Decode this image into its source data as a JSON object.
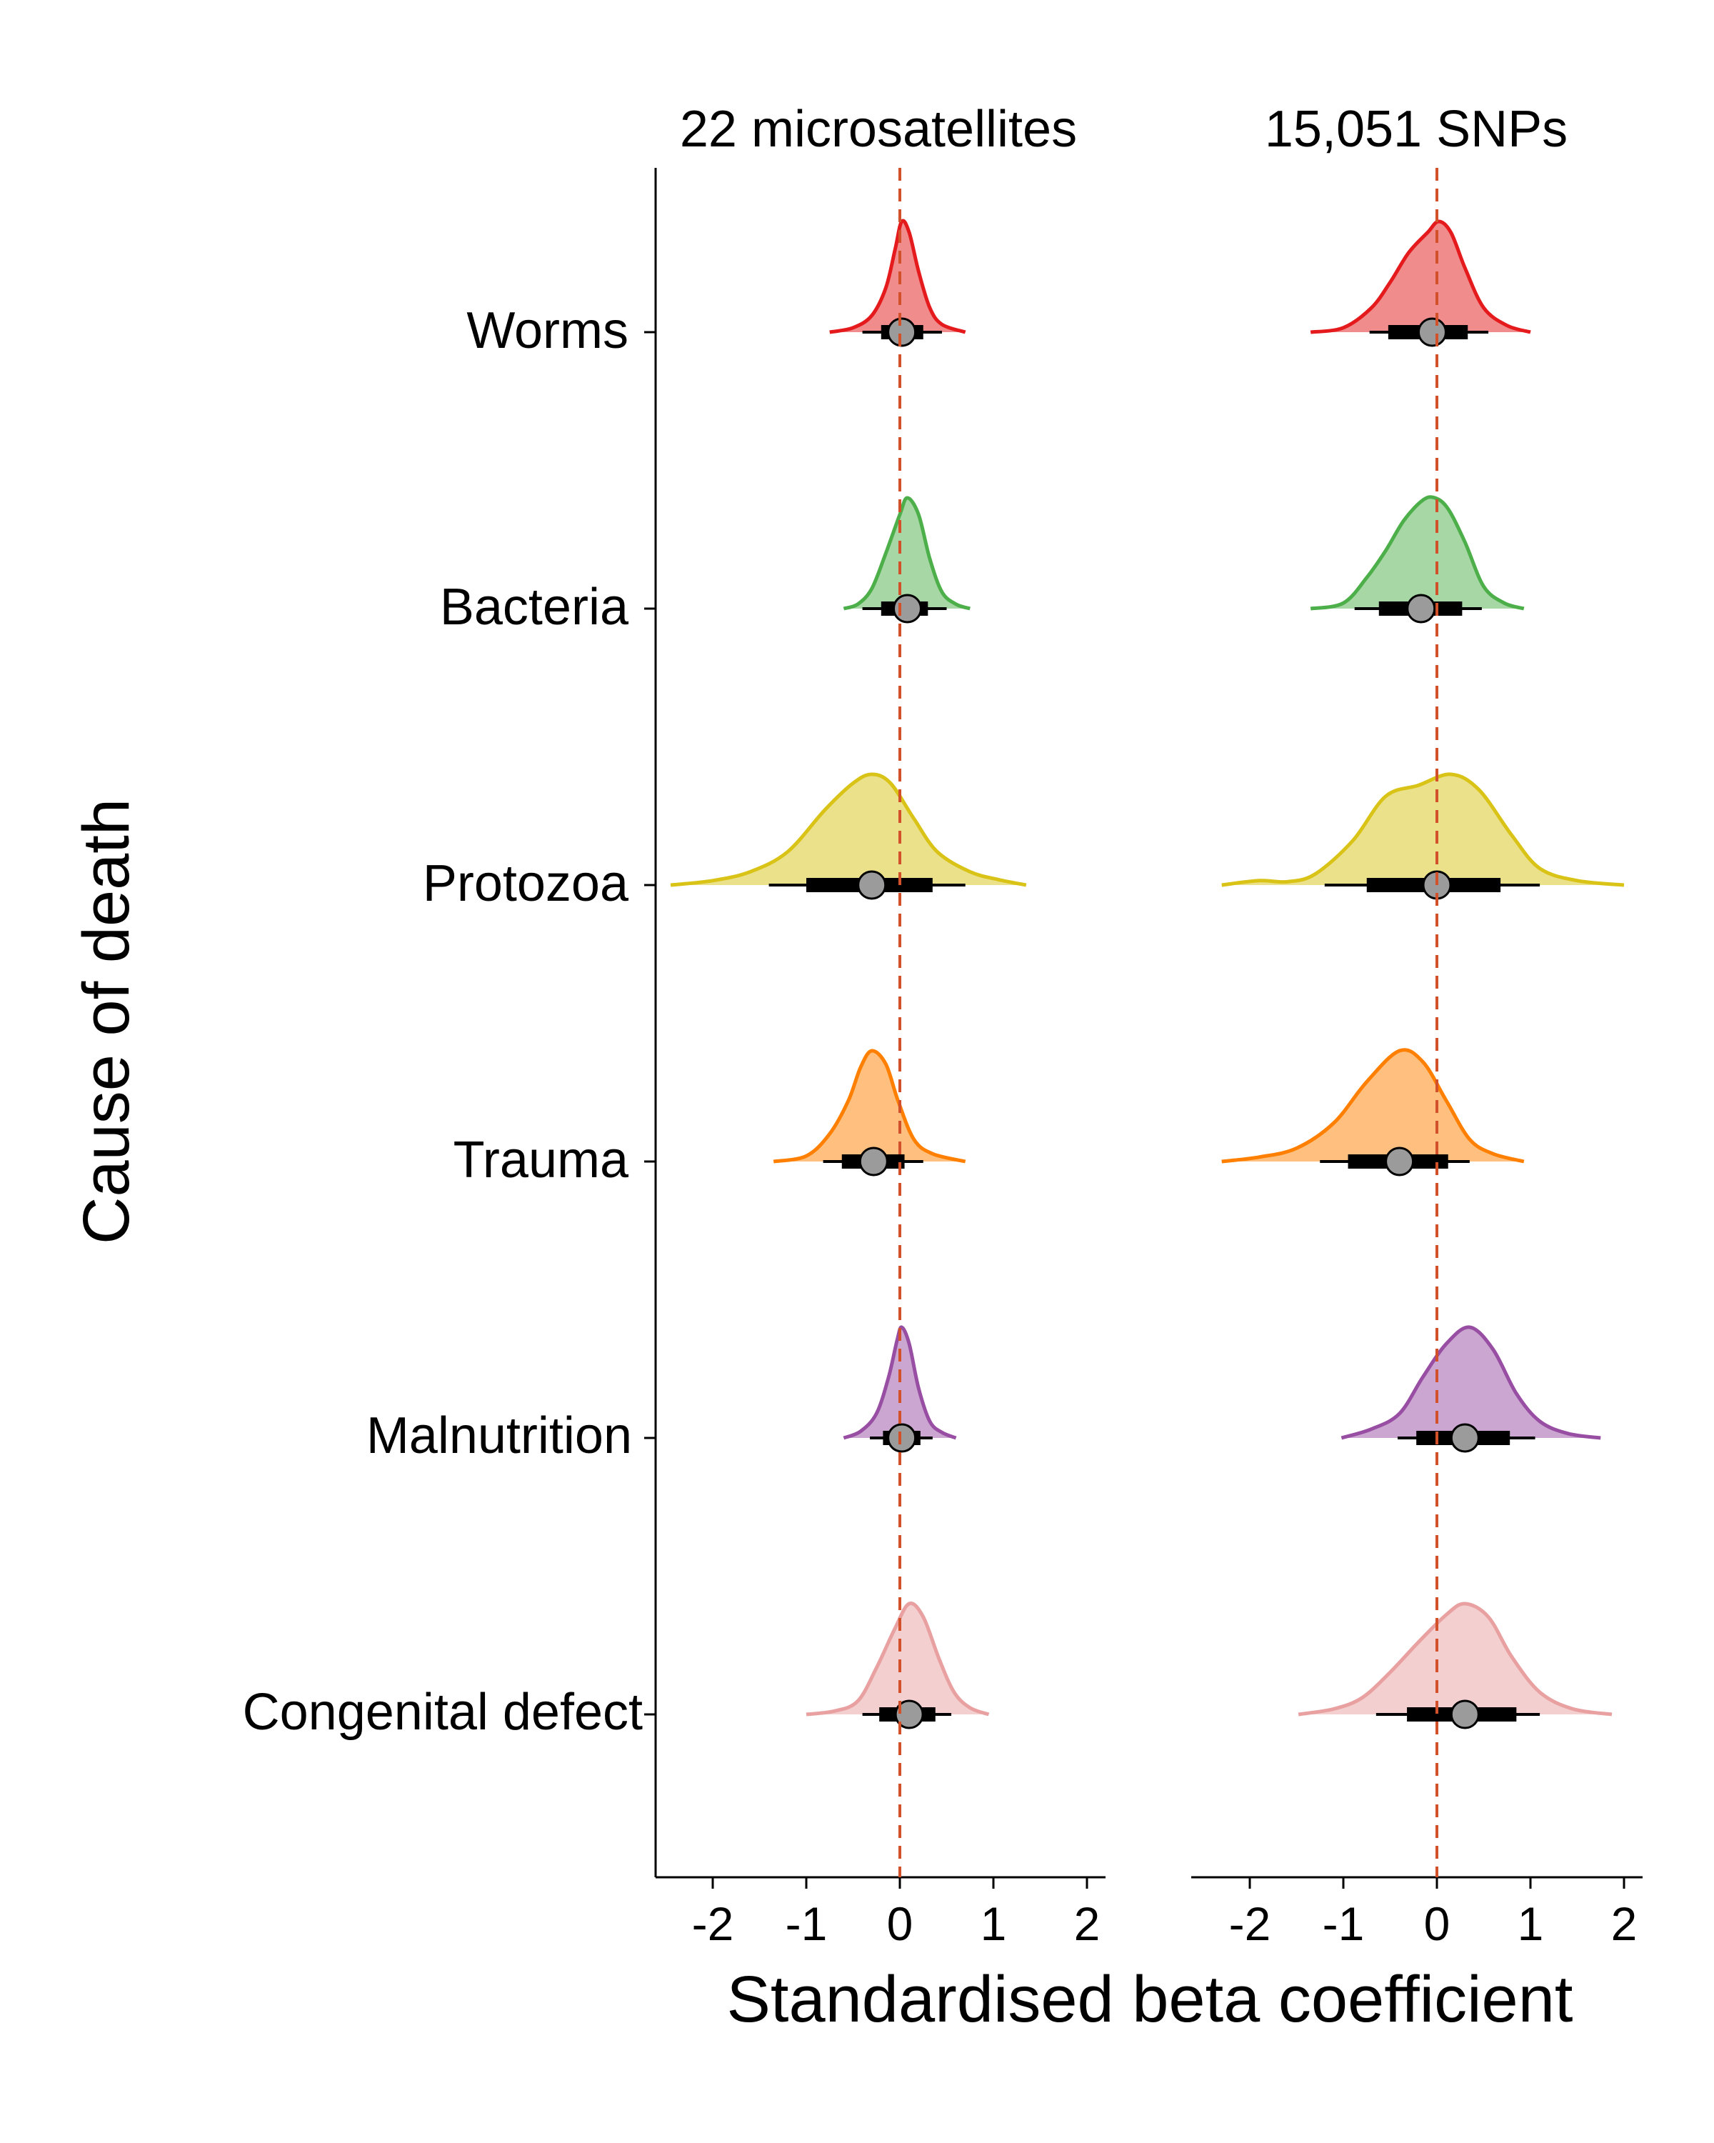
{
  "chart_data": {
    "type": "violin",
    "xlabel": "Standardised beta coefficient",
    "ylabel": "Cause of death",
    "xlim": [
      -2.6,
      2.2
    ],
    "xticks": [
      -2,
      -1,
      0,
      1,
      2
    ],
    "xtick_labels": [
      "-2",
      "-1",
      "0",
      "1",
      "2"
    ],
    "reference_line": 0,
    "categories": [
      "Worms",
      "Bacteria",
      "Protozoa",
      "Trauma",
      "Malnutrition",
      "Congenital defect"
    ],
    "colors": {
      "Worms": "#e41a1c",
      "Bacteria": "#4daf4a",
      "Protozoa": "#d9c317",
      "Trauma": "#ff7f00",
      "Malnutrition": "#984ea3",
      "Congenital defect": "#e8a0a0"
    },
    "panels": [
      {
        "title": "22 microsatellites",
        "series": [
          {
            "name": "Worms",
            "median": 0.02,
            "inner": [
              -0.2,
              0.25
            ],
            "outer": [
              -0.4,
              0.45
            ],
            "range": [
              -0.75,
              0.7
            ],
            "density": [
              [
                -0.75,
                0
              ],
              [
                -0.5,
                0.04
              ],
              [
                -0.3,
                0.15
              ],
              [
                -0.15,
                0.4
              ],
              [
                -0.05,
                0.75
              ],
              [
                0.02,
                1.0
              ],
              [
                0.1,
                0.9
              ],
              [
                0.2,
                0.55
              ],
              [
                0.32,
                0.22
              ],
              [
                0.45,
                0.07
              ],
              [
                0.7,
                0
              ]
            ]
          },
          {
            "name": "Bacteria",
            "median": 0.08,
            "inner": [
              -0.2,
              0.3
            ],
            "outer": [
              -0.4,
              0.5
            ],
            "range": [
              -0.6,
              0.75
            ],
            "density": [
              [
                -0.6,
                0
              ],
              [
                -0.45,
                0.04
              ],
              [
                -0.3,
                0.18
              ],
              [
                -0.15,
                0.5
              ],
              [
                0.0,
                0.85
              ],
              [
                0.08,
                1.0
              ],
              [
                0.2,
                0.85
              ],
              [
                0.32,
                0.45
              ],
              [
                0.45,
                0.15
              ],
              [
                0.6,
                0.04
              ],
              [
                0.75,
                0
              ]
            ]
          },
          {
            "name": "Protozoa",
            "median": -0.3,
            "inner": [
              -1.0,
              0.35
            ],
            "outer": [
              -1.4,
              0.7
            ],
            "range": [
              -2.45,
              1.35
            ],
            "density": [
              [
                -2.45,
                0
              ],
              [
                -2.0,
                0.04
              ],
              [
                -1.6,
                0.12
              ],
              [
                -1.2,
                0.3
              ],
              [
                -0.8,
                0.68
              ],
              [
                -0.5,
                0.92
              ],
              [
                -0.3,
                1.0
              ],
              [
                -0.1,
                0.92
              ],
              [
                0.15,
                0.6
              ],
              [
                0.4,
                0.3
              ],
              [
                0.75,
                0.12
              ],
              [
                1.05,
                0.05
              ],
              [
                1.35,
                0
              ]
            ]
          },
          {
            "name": "Trauma",
            "median": -0.28,
            "inner": [
              -0.62,
              0.05
            ],
            "outer": [
              -0.82,
              0.25
            ],
            "range": [
              -1.35,
              0.7
            ],
            "density": [
              [
                -1.35,
                0
              ],
              [
                -1.0,
                0.05
              ],
              [
                -0.75,
                0.25
              ],
              [
                -0.55,
                0.55
              ],
              [
                -0.42,
                0.85
              ],
              [
                -0.3,
                1.0
              ],
              [
                -0.15,
                0.88
              ],
              [
                -0.02,
                0.55
              ],
              [
                0.15,
                0.2
              ],
              [
                0.35,
                0.07
              ],
              [
                0.7,
                0
              ]
            ]
          },
          {
            "name": "Malnutrition",
            "median": 0.02,
            "inner": [
              -0.18,
              0.22
            ],
            "outer": [
              -0.32,
              0.35
            ],
            "range": [
              -0.6,
              0.6
            ],
            "density": [
              [
                -0.6,
                0
              ],
              [
                -0.42,
                0.06
              ],
              [
                -0.25,
                0.22
              ],
              [
                -0.12,
                0.55
              ],
              [
                -0.03,
                0.88
              ],
              [
                0.02,
                1.0
              ],
              [
                0.1,
                0.85
              ],
              [
                0.2,
                0.45
              ],
              [
                0.32,
                0.15
              ],
              [
                0.45,
                0.05
              ],
              [
                0.6,
                0
              ]
            ]
          },
          {
            "name": "Congenital defect",
            "median": 0.1,
            "inner": [
              -0.22,
              0.38
            ],
            "outer": [
              -0.4,
              0.55
            ],
            "range": [
              -1.0,
              0.95
            ],
            "density": [
              [
                -1.0,
                0
              ],
              [
                -0.7,
                0.03
              ],
              [
                -0.45,
                0.12
              ],
              [
                -0.25,
                0.42
              ],
              [
                -0.05,
                0.78
              ],
              [
                0.1,
                1.0
              ],
              [
                0.25,
                0.88
              ],
              [
                0.42,
                0.5
              ],
              [
                0.58,
                0.2
              ],
              [
                0.75,
                0.06
              ],
              [
                0.95,
                0
              ]
            ]
          }
        ]
      },
      {
        "title": "15,051 SNPs",
        "series": [
          {
            "name": "Worms",
            "median": -0.05,
            "inner": [
              -0.52,
              0.33
            ],
            "outer": [
              -0.72,
              0.55
            ],
            "range": [
              -1.35,
              1.0
            ],
            "density": [
              [
                -1.35,
                0
              ],
              [
                -1.0,
                0.04
              ],
              [
                -0.7,
                0.22
              ],
              [
                -0.5,
                0.45
              ],
              [
                -0.3,
                0.72
              ],
              [
                -0.1,
                0.9
              ],
              [
                0.02,
                1.0
              ],
              [
                0.15,
                0.9
              ],
              [
                0.3,
                0.58
              ],
              [
                0.5,
                0.22
              ],
              [
                0.75,
                0.06
              ],
              [
                1.0,
                0
              ]
            ]
          },
          {
            "name": "Bacteria",
            "median": -0.17,
            "inner": [
              -0.62,
              0.27
            ],
            "outer": [
              -0.88,
              0.48
            ],
            "range": [
              -1.35,
              0.93
            ],
            "density": [
              [
                -1.35,
                0
              ],
              [
                -1.0,
                0.05
              ],
              [
                -0.75,
                0.28
              ],
              [
                -0.55,
                0.52
              ],
              [
                -0.35,
                0.8
              ],
              [
                -0.15,
                0.98
              ],
              [
                -0.02,
                1.0
              ],
              [
                0.12,
                0.9
              ],
              [
                0.3,
                0.6
              ],
              [
                0.5,
                0.2
              ],
              [
                0.72,
                0.05
              ],
              [
                0.93,
                0
              ]
            ]
          },
          {
            "name": "Protozoa",
            "median": 0.0,
            "inner": [
              -0.75,
              0.68
            ],
            "outer": [
              -1.2,
              1.1
            ],
            "range": [
              -2.3,
              2.0
            ],
            "density": [
              [
                -2.3,
                0
              ],
              [
                -1.9,
                0.04
              ],
              [
                -1.6,
                0.03
              ],
              [
                -1.3,
                0.1
              ],
              [
                -0.9,
                0.4
              ],
              [
                -0.55,
                0.8
              ],
              [
                -0.2,
                0.9
              ],
              [
                0.15,
                1.0
              ],
              [
                0.45,
                0.86
              ],
              [
                0.8,
                0.45
              ],
              [
                1.1,
                0.15
              ],
              [
                1.5,
                0.04
              ],
              [
                2.0,
                0
              ]
            ]
          },
          {
            "name": "Trauma",
            "median": -0.4,
            "inner": [
              -0.95,
              0.12
            ],
            "outer": [
              -1.25,
              0.35
            ],
            "range": [
              -2.3,
              0.93
            ],
            "density": [
              [
                -2.3,
                0
              ],
              [
                -1.9,
                0.04
              ],
              [
                -1.5,
                0.12
              ],
              [
                -1.1,
                0.35
              ],
              [
                -0.75,
                0.72
              ],
              [
                -0.4,
                1.0
              ],
              [
                -0.15,
                0.9
              ],
              [
                0.1,
                0.55
              ],
              [
                0.35,
                0.2
              ],
              [
                0.6,
                0.07
              ],
              [
                0.93,
                0
              ]
            ]
          },
          {
            "name": "Malnutrition",
            "median": 0.3,
            "inner": [
              -0.22,
              0.78
            ],
            "outer": [
              -0.42,
              1.05
            ],
            "range": [
              -1.02,
              1.75
            ],
            "density": [
              [
                -1.02,
                0
              ],
              [
                -0.7,
                0.08
              ],
              [
                -0.4,
                0.22
              ],
              [
                -0.15,
                0.55
              ],
              [
                0.1,
                0.85
              ],
              [
                0.35,
                1.0
              ],
              [
                0.6,
                0.8
              ],
              [
                0.85,
                0.4
              ],
              [
                1.1,
                0.15
              ],
              [
                1.4,
                0.04
              ],
              [
                1.75,
                0
              ]
            ]
          },
          {
            "name": "Congenital defect",
            "median": 0.3,
            "inner": [
              -0.32,
              0.85
            ],
            "outer": [
              -0.65,
              1.1
            ],
            "range": [
              -1.48,
              1.87
            ],
            "density": [
              [
                -1.48,
                0
              ],
              [
                -1.1,
                0.05
              ],
              [
                -0.8,
                0.15
              ],
              [
                -0.5,
                0.38
              ],
              [
                -0.2,
                0.65
              ],
              [
                0.1,
                0.9
              ],
              [
                0.3,
                1.0
              ],
              [
                0.55,
                0.88
              ],
              [
                0.8,
                0.52
              ],
              [
                1.1,
                0.2
              ],
              [
                1.45,
                0.05
              ],
              [
                1.87,
                0
              ]
            ]
          }
        ]
      }
    ]
  }
}
